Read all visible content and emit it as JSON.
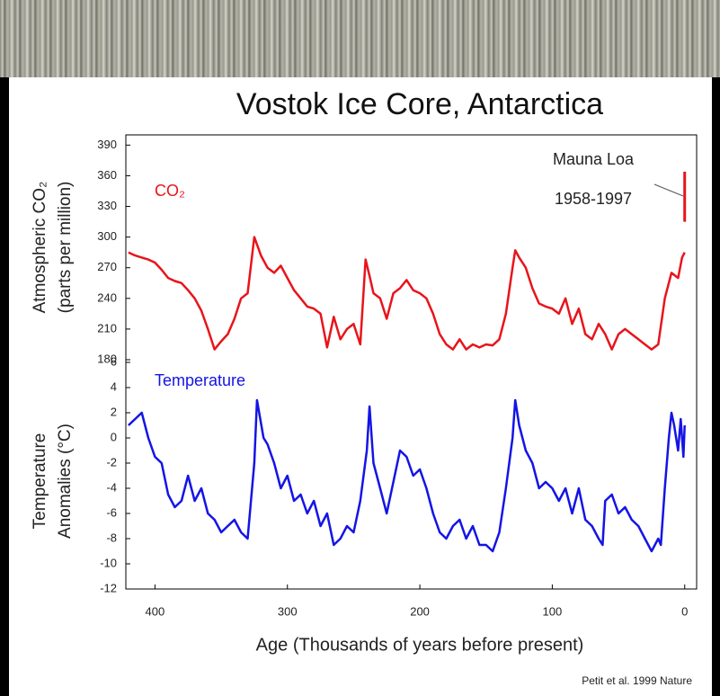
{
  "chart_data": [
    {
      "type": "line",
      "title": "Vostok Ice Core, Antarctica",
      "ylabel": [
        "Atmospheric CO₂",
        "(parts per million)"
      ],
      "xlim": [
        422,
        -9
      ],
      "ylim": [
        180,
        400
      ],
      "yticks": [
        180,
        210,
        240,
        270,
        300,
        330,
        360,
        390
      ],
      "series": [
        {
          "name": "CO₂",
          "color": "#e8141b",
          "x": [
            420,
            415,
            410,
            405,
            400,
            395,
            390,
            385,
            380,
            375,
            370,
            365,
            360,
            355,
            350,
            345,
            340,
            335,
            330,
            325,
            320,
            315,
            310,
            305,
            300,
            295,
            290,
            285,
            280,
            275,
            270,
            265,
            260,
            255,
            250,
            245,
            241,
            238,
            235,
            230,
            225,
            220,
            215,
            210,
            205,
            200,
            195,
            190,
            185,
            180,
            175,
            170,
            165,
            160,
            155,
            150,
            145,
            140,
            135,
            130,
            128,
            125,
            120,
            115,
            110,
            105,
            100,
            95,
            90,
            85,
            80,
            75,
            70,
            65,
            60,
            55,
            50,
            45,
            40,
            35,
            30,
            25,
            20,
            15,
            10,
            5,
            2,
            0
          ],
          "values": [
            285,
            282,
            280,
            278,
            275,
            268,
            260,
            257,
            255,
            248,
            240,
            228,
            210,
            190,
            198,
            205,
            220,
            240,
            245,
            300,
            282,
            270,
            265,
            272,
            260,
            248,
            240,
            232,
            230,
            225,
            192,
            222,
            200,
            210,
            215,
            195,
            278,
            262,
            245,
            240,
            220,
            245,
            250,
            258,
            248,
            245,
            240,
            225,
            205,
            195,
            190,
            200,
            190,
            195,
            192,
            195,
            194,
            200,
            225,
            270,
            287,
            280,
            270,
            250,
            235,
            232,
            230,
            225,
            240,
            215,
            230,
            205,
            200,
            215,
            205,
            190,
            205,
            210,
            205,
            200,
            195,
            190,
            195,
            240,
            265,
            260,
            280,
            285
          ]
        },
        {
          "name": "Mauna Loa",
          "years": "1958-1997",
          "color": "#e8141b",
          "x": [
            0,
            0
          ],
          "values": [
            315,
            364
          ]
        }
      ]
    },
    {
      "type": "line",
      "ylabel": [
        "Temperature",
        "Anomalies (°C)"
      ],
      "xlabel": "Age (Thousands of years before present)",
      "source": "Petit et al. 1999 Nature",
      "xlim": [
        422,
        -9
      ],
      "xticks": [
        400,
        300,
        200,
        100,
        0
      ],
      "ylim": [
        -12,
        6
      ],
      "yticks": [
        -12,
        -10,
        -8,
        -6,
        -4,
        -2,
        0,
        2,
        4,
        6
      ],
      "series": [
        {
          "name": "Temperature",
          "color": "#1414e6",
          "x": [
            420,
            415,
            410,
            405,
            400,
            395,
            390,
            385,
            380,
            375,
            370,
            365,
            360,
            355,
            350,
            345,
            340,
            335,
            330,
            325,
            323,
            318,
            315,
            310,
            305,
            300,
            295,
            290,
            285,
            280,
            275,
            270,
            265,
            260,
            255,
            250,
            245,
            240,
            238,
            235,
            230,
            225,
            220,
            215,
            210,
            205,
            200,
            195,
            190,
            185,
            180,
            175,
            170,
            165,
            160,
            155,
            150,
            145,
            140,
            135,
            130,
            128,
            125,
            120,
            115,
            110,
            105,
            100,
            95,
            90,
            85,
            80,
            75,
            70,
            65,
            62,
            60,
            55,
            50,
            45,
            40,
            35,
            30,
            25,
            20,
            18,
            15,
            12,
            10,
            8,
            5,
            3,
            1,
            0
          ],
          "values": [
            1,
            1.5,
            2,
            0,
            -1.5,
            -2,
            -4.5,
            -5.5,
            -5,
            -3,
            -5,
            -4,
            -6,
            -6.5,
            -7.5,
            -7,
            -6.5,
            -7.5,
            -8,
            -2,
            3,
            0,
            -0.5,
            -2,
            -4,
            -3,
            -5,
            -4.5,
            -6,
            -5,
            -7,
            -6,
            -8.5,
            -8,
            -7,
            -7.5,
            -5,
            -1,
            2.5,
            -2,
            -4,
            -6,
            -3.5,
            -1,
            -1.5,
            -3,
            -2.5,
            -4,
            -6,
            -7.5,
            -8,
            -7,
            -6.5,
            -8,
            -7,
            -8.5,
            -8.5,
            -9,
            -7.5,
            -4,
            0,
            3,
            1,
            -1,
            -2,
            -4,
            -3.5,
            -4,
            -5,
            -4,
            -6,
            -4,
            -6.5,
            -7,
            -8,
            -8.5,
            -5,
            -4.5,
            -6,
            -5.5,
            -6.5,
            -7,
            -8,
            -9,
            -8,
            -8.5,
            -4,
            0,
            2,
            1,
            -1,
            1.5,
            -1.5,
            1
          ]
        }
      ]
    }
  ]
}
